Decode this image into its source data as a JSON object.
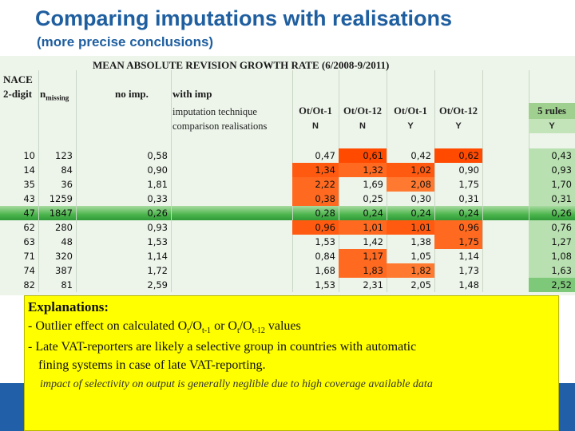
{
  "header": {
    "title": "Comparing imputations with realisations",
    "subtitle": "(more precise conclusions)"
  },
  "table": {
    "title": "MEAN ABSOLUTE REVISION GROWTH RATE (6/2008-9/2011)",
    "col_nace": "NACE",
    "col_2digit": "2-digit",
    "col_nmissing": "n",
    "col_nmissing_sub": "missing",
    "col_noimp": "no imp.",
    "col_withimp": "with imp",
    "row_technique": "imputation technique",
    "row_comparison": "comparison realisations",
    "methods": [
      {
        "label": "Ot/Ot-1",
        "flag": "N"
      },
      {
        "label": "Ot/Ot-12",
        "flag": "N"
      },
      {
        "label": "Ot/Ot-1",
        "flag": "Y"
      },
      {
        "label": "Ot/Ot-12",
        "flag": "Y"
      },
      {
        "label": "5 rules",
        "flag": "Y"
      }
    ],
    "rows": [
      {
        "nace": "10",
        "n": "123",
        "noimp": "0,58",
        "v": [
          "0,47",
          "0,61",
          "0,42",
          "0,62",
          "0,43"
        ]
      },
      {
        "nace": "14",
        "n": "84",
        "noimp": "0,90",
        "v": [
          "1,34",
          "1,32",
          "1,02",
          "0,90",
          "0,93"
        ]
      },
      {
        "nace": "35",
        "n": "36",
        "noimp": "1,81",
        "v": [
          "2,22",
          "1,69",
          "2,08",
          "1,75",
          "1,70"
        ]
      },
      {
        "nace": "43",
        "n": "1259",
        "noimp": "0,33",
        "v": [
          "0,38",
          "0,25",
          "0,30",
          "0,31",
          "0,31"
        ]
      },
      {
        "nace": "47",
        "n": "1847",
        "noimp": "0,26",
        "v": [
          "0,28",
          "0,24",
          "0,24",
          "0,24",
          "0,26"
        ]
      },
      {
        "nace": "62",
        "n": "280",
        "noimp": "0,93",
        "v": [
          "0,96",
          "1,01",
          "1,01",
          "0,96",
          "0,76"
        ]
      },
      {
        "nace": "63",
        "n": "48",
        "noimp": "1,53",
        "v": [
          "1,53",
          "1,42",
          "1,38",
          "1,75",
          "1,27"
        ]
      },
      {
        "nace": "71",
        "n": "320",
        "noimp": "1,14",
        "v": [
          "0,84",
          "1,17",
          "1,05",
          "1,14",
          "1,08"
        ]
      },
      {
        "nace": "74",
        "n": "387",
        "noimp": "1,72",
        "v": [
          "1,68",
          "1,83",
          "1,82",
          "1,73",
          "1,63"
        ]
      },
      {
        "nace": "82",
        "n": "81",
        "noimp": "2,59",
        "v": [
          "1,53",
          "2,31",
          "2,05",
          "1,48",
          "2,52"
        ]
      }
    ],
    "highlight": [
      [
        null,
        "#ff4a00",
        null,
        "#ff4a00",
        "#b8e0b0"
      ],
      [
        "#ff5a10",
        "#ff6a20",
        "#ff5a10",
        null,
        "#b8e0b0"
      ],
      [
        "#ff6a20",
        null,
        "#ff7a30",
        null,
        "#b8e0b0"
      ],
      [
        "#ff6a20",
        null,
        null,
        null,
        "#b8e0b0"
      ],
      [
        null,
        null,
        null,
        null,
        null
      ],
      [
        "#ff5a10",
        "#ff6a20",
        "#ff5a10",
        "#ff6a20",
        "#b8e0b0"
      ],
      [
        null,
        null,
        null,
        "#ff6a20",
        "#b8e0b0"
      ],
      [
        null,
        "#ff6a20",
        null,
        null,
        "#b8e0b0"
      ],
      [
        null,
        "#ff6a20",
        "#ff7a30",
        null,
        "#b8e0b0"
      ],
      [
        null,
        null,
        null,
        null,
        "#7ec87a"
      ]
    ]
  },
  "explanations": {
    "heading": "Explanations:",
    "line1_prefix": "- Outlier effect on calculated O",
    "line1_sub1": "t",
    "line1_mid1": "/O",
    "line1_sub2": "t-1",
    "line1_mid2": " or O",
    "line1_sub3": "t",
    "line1_mid3": "/O",
    "line1_sub4": "t-12",
    "line1_suffix": " values",
    "line2": "- Late VAT-reporters are likely a selective group in countries with automatic",
    "line3": "fining systems in case of late VAT-reporting.",
    "note": "impact of selectivity on output is generally neglible due to high coverage available data"
  }
}
